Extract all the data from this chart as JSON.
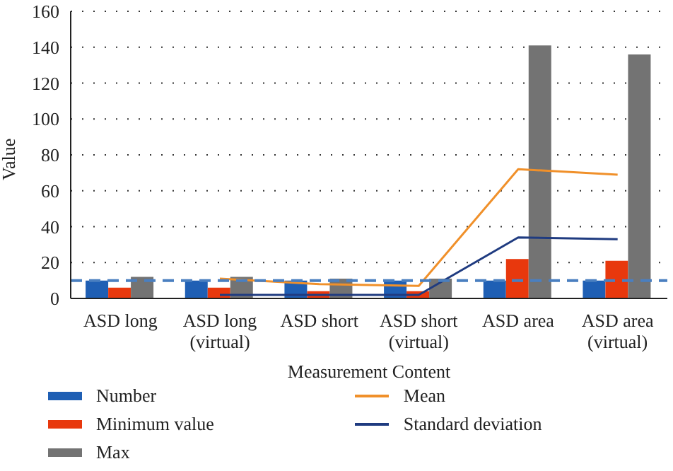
{
  "chart_data": {
    "type": "bar",
    "xlabel": "Measurement Content",
    "ylabel": "Value",
    "categories": [
      "ASD long",
      "ASD long\n(virtual)",
      "ASD short",
      "ASD short\n(virtual)",
      "ASD area",
      "ASD area\n(virtual)"
    ],
    "series": [
      {
        "name": "Number",
        "color": "#1f5fb4",
        "values": [
          10,
          10,
          10,
          10,
          10,
          10
        ]
      },
      {
        "name": "Minimum value",
        "color": "#e8380d",
        "values": [
          6,
          6,
          4,
          4,
          22,
          21
        ]
      },
      {
        "name": "Max",
        "color": "#737373",
        "values": [
          12,
          12,
          11,
          11,
          141,
          136
        ]
      },
      {
        "name": "Mean",
        "type": "line",
        "color": "#f0902a",
        "values": [
          null,
          11,
          8,
          7,
          72,
          69
        ]
      },
      {
        "name": "Standard deviation",
        "type": "line",
        "color": "#1f3b80",
        "values": [
          null,
          2,
          2,
          2,
          34,
          33
        ]
      }
    ],
    "ylim": [
      0,
      160
    ],
    "yticks": [
      0,
      20,
      40,
      60,
      80,
      100,
      120,
      140,
      160
    ],
    "grid": "y",
    "legend": "bottom",
    "ref_lines": [
      {
        "axis": "y",
        "value": 10,
        "color": "#4a7fc0",
        "line_style": "dashed"
      }
    ]
  }
}
